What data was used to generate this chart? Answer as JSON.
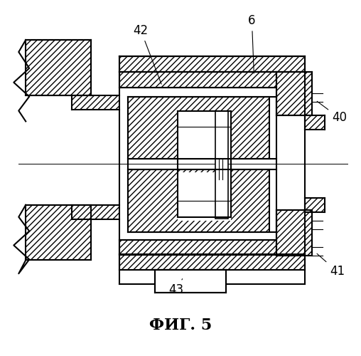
{
  "title": "ФИГ. 5",
  "title_fontsize": 16,
  "title_fontweight": "bold",
  "background_color": "#ffffff",
  "line_color": "#000000"
}
